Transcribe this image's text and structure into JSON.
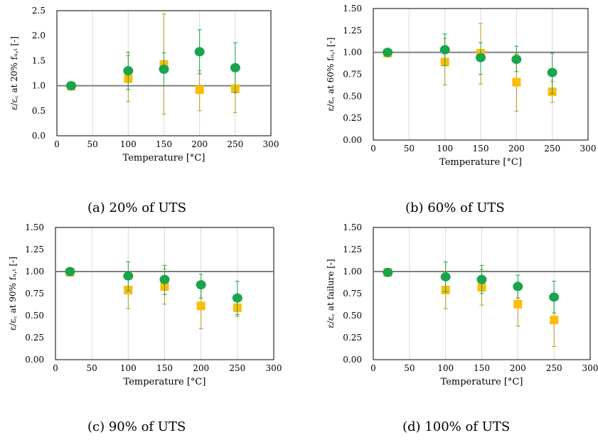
{
  "colors": {
    "green": "#1aa44d",
    "orange": "#fbbd0a",
    "green_err": "#1aa44d",
    "orange_err": "#b8991a",
    "ref_line": "#7f7f7f",
    "grid": "#d9d9d9"
  },
  "chart_data": [
    {
      "type": "scatter",
      "caption": "(a) 20% of UTS",
      "xlabel": "Temperature [°C]",
      "ylabel": "ε/ε꜀ at 20% fᵤ,ₜ [-]",
      "xlim": [
        0,
        300
      ],
      "ylim": [
        0,
        2.5
      ],
      "x_ticks": [
        "0",
        "50",
        "100",
        "150",
        "200",
        "250",
        "300"
      ],
      "y_ticks": [
        "0.0",
        "0.5",
        "1.0",
        "1.5",
        "2.0",
        "2.5"
      ],
      "reference_y": 1.0,
      "grid": "vertical",
      "series": [
        {
          "marker": "circle",
          "color": "green",
          "points": [
            {
              "x": 20,
              "y": 1.0,
              "yerr_low": 1.0,
              "yerr_high": 1.0
            },
            {
              "x": 100,
              "y": 1.3,
              "yerr_low": 0.93,
              "yerr_high": 1.67
            },
            {
              "x": 150,
              "y": 1.33,
              "yerr_low": 1.0,
              "yerr_high": 1.66
            },
            {
              "x": 200,
              "y": 1.68,
              "yerr_low": 1.24,
              "yerr_high": 2.12
            },
            {
              "x": 250,
              "y": 1.36,
              "yerr_low": 0.86,
              "yerr_high": 1.86
            }
          ]
        },
        {
          "marker": "square",
          "color": "orange",
          "points": [
            {
              "x": 20,
              "y": 0.99,
              "yerr_low": 0.99,
              "yerr_high": 0.99
            },
            {
              "x": 100,
              "y": 1.14,
              "yerr_low": 0.68,
              "yerr_high": 1.6
            },
            {
              "x": 150,
              "y": 1.43,
              "yerr_low": 0.43,
              "yerr_high": 2.43
            },
            {
              "x": 200,
              "y": 0.92,
              "yerr_low": 0.5,
              "yerr_high": 1.3
            },
            {
              "x": 250,
              "y": 0.94,
              "yerr_low": 0.46,
              "yerr_high": 1.42
            }
          ]
        }
      ]
    },
    {
      "type": "scatter",
      "caption": "(b) 60% of UTS",
      "xlabel": "Temperature [°C]",
      "ylabel": "ε/ε꜀ at 60% fᵤ,ₜ [-]",
      "xlim": [
        0,
        300
      ],
      "ylim": [
        0,
        1.5
      ],
      "x_ticks": [
        "0",
        "50",
        "100",
        "150",
        "200",
        "250",
        "300"
      ],
      "y_ticks": [
        "0.00",
        "0.25",
        "0.50",
        "0.75",
        "1.00",
        "1.25",
        "1.50"
      ],
      "reference_y": 1.0,
      "grid": "vertical",
      "series": [
        {
          "marker": "circle",
          "color": "green",
          "points": [
            {
              "x": 20,
              "y": 1.0,
              "yerr_low": 1.0,
              "yerr_high": 1.0
            },
            {
              "x": 100,
              "y": 1.03,
              "yerr_low": 0.85,
              "yerr_high": 1.21
            },
            {
              "x": 150,
              "y": 0.94,
              "yerr_low": 0.75,
              "yerr_high": 1.11
            },
            {
              "x": 200,
              "y": 0.92,
              "yerr_low": 0.78,
              "yerr_high": 1.07
            },
            {
              "x": 250,
              "y": 0.77,
              "yerr_low": 0.53,
              "yerr_high": 0.99
            }
          ]
        },
        {
          "marker": "square",
          "color": "orange",
          "points": [
            {
              "x": 20,
              "y": 0.99,
              "yerr_low": 0.99,
              "yerr_high": 0.99
            },
            {
              "x": 100,
              "y": 0.89,
              "yerr_low": 0.63,
              "yerr_high": 1.16
            },
            {
              "x": 150,
              "y": 0.99,
              "yerr_low": 0.64,
              "yerr_high": 1.33
            },
            {
              "x": 200,
              "y": 0.66,
              "yerr_low": 0.33,
              "yerr_high": 0.98
            },
            {
              "x": 250,
              "y": 0.55,
              "yerr_low": 0.43,
              "yerr_high": 0.67
            }
          ]
        }
      ]
    },
    {
      "type": "scatter",
      "caption": "(c) 90% of UTS",
      "xlabel": "Temperature [°C]",
      "ylabel": "ε/ε꜀ at 90% fᵤ,ₜ [-]",
      "xlim": [
        0,
        300
      ],
      "ylim": [
        0,
        1.5
      ],
      "x_ticks": [
        "0",
        "50",
        "100",
        "150",
        "200",
        "250",
        "300"
      ],
      "y_ticks": [
        "0.00",
        "0.25",
        "0.50",
        "0.75",
        "1.00",
        "1.25",
        "1.50"
      ],
      "reference_y": 1.0,
      "grid": "vertical",
      "series": [
        {
          "marker": "circle",
          "color": "green",
          "points": [
            {
              "x": 20,
              "y": 1.0,
              "yerr_low": 1.0,
              "yerr_high": 1.0
            },
            {
              "x": 100,
              "y": 0.95,
              "yerr_low": 0.78,
              "yerr_high": 1.11
            },
            {
              "x": 150,
              "y": 0.91,
              "yerr_low": 0.74,
              "yerr_high": 1.07
            },
            {
              "x": 200,
              "y": 0.85,
              "yerr_low": 0.7,
              "yerr_high": 0.97
            },
            {
              "x": 250,
              "y": 0.7,
              "yerr_low": 0.51,
              "yerr_high": 0.89
            }
          ]
        },
        {
          "marker": "square",
          "color": "orange",
          "points": [
            {
              "x": 20,
              "y": 0.99,
              "yerr_low": 0.99,
              "yerr_high": 0.99
            },
            {
              "x": 100,
              "y": 0.79,
              "yerr_low": 0.58,
              "yerr_high": 1.0
            },
            {
              "x": 150,
              "y": 0.83,
              "yerr_low": 0.63,
              "yerr_high": 1.03
            },
            {
              "x": 200,
              "y": 0.61,
              "yerr_low": 0.35,
              "yerr_high": 0.87
            },
            {
              "x": 250,
              "y": 0.59,
              "yerr_low": 0.49,
              "yerr_high": 0.7
            }
          ]
        }
      ]
    },
    {
      "type": "scatter",
      "caption": "(d) 100% of UTS",
      "xlabel": "Temperature [°C]",
      "ylabel": "ε/ε꜀ at failure [-]",
      "xlim": [
        0,
        300
      ],
      "ylim": [
        0,
        1.5
      ],
      "x_ticks": [
        "0",
        "50",
        "100",
        "150",
        "200",
        "250",
        "300"
      ],
      "y_ticks": [
        "0.00",
        "0.25",
        "0.50",
        "0.75",
        "1.00",
        "1.25",
        "1.50"
      ],
      "reference_y": 1.0,
      "grid": "vertical",
      "series": [
        {
          "marker": "circle",
          "color": "green",
          "points": [
            {
              "x": 20,
              "y": 0.99,
              "yerr_low": 0.99,
              "yerr_high": 0.99
            },
            {
              "x": 100,
              "y": 0.94,
              "yerr_low": 0.77,
              "yerr_high": 1.11
            },
            {
              "x": 150,
              "y": 0.91,
              "yerr_low": 0.75,
              "yerr_high": 1.07
            },
            {
              "x": 200,
              "y": 0.83,
              "yerr_low": 0.7,
              "yerr_high": 0.96
            },
            {
              "x": 250,
              "y": 0.71,
              "yerr_low": 0.53,
              "yerr_high": 0.89
            }
          ]
        },
        {
          "marker": "square",
          "color": "orange",
          "points": [
            {
              "x": 20,
              "y": 0.99,
              "yerr_low": 0.99,
              "yerr_high": 0.99
            },
            {
              "x": 100,
              "y": 0.79,
              "yerr_low": 0.58,
              "yerr_high": 1.0
            },
            {
              "x": 150,
              "y": 0.82,
              "yerr_low": 0.62,
              "yerr_high": 1.02
            },
            {
              "x": 200,
              "y": 0.63,
              "yerr_low": 0.38,
              "yerr_high": 0.88
            },
            {
              "x": 250,
              "y": 0.45,
              "yerr_low": 0.15,
              "yerr_high": 0.75
            }
          ]
        }
      ]
    }
  ]
}
